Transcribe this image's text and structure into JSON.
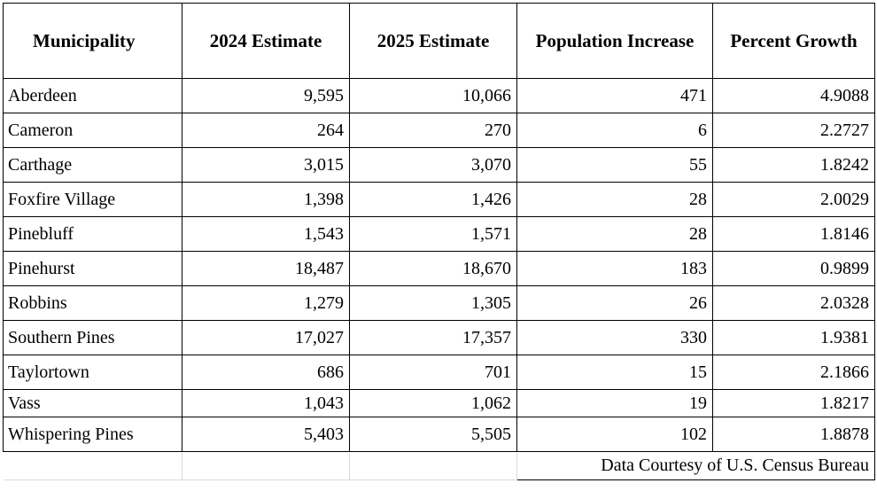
{
  "table": {
    "headers": [
      "Municipality",
      "2024 Estimate",
      "2025 Estimate",
      "Population Increase",
      "Percent Growth"
    ],
    "rows": [
      [
        "Aberdeen",
        "9,595",
        "10,066",
        "471",
        "4.9088"
      ],
      [
        "Cameron",
        "264",
        "270",
        "6",
        "2.2727"
      ],
      [
        "Carthage",
        "3,015",
        "3,070",
        "55",
        "1.8242"
      ],
      [
        "Foxfire Village",
        "1,398",
        "1,426",
        "28",
        "2.0029"
      ],
      [
        "Pinebluff",
        "1,543",
        "1,571",
        "28",
        "1.8146"
      ],
      [
        "Pinehurst",
        "18,487",
        "18,670",
        "183",
        "0.9899"
      ],
      [
        "Robbins",
        "1,279",
        "1,305",
        "26",
        "2.0328"
      ],
      [
        "Southern Pines",
        "17,027",
        "17,357",
        "330",
        "1.9381"
      ],
      [
        "Taylortown",
        "686",
        "701",
        "15",
        "2.1866"
      ],
      [
        "Vass",
        "1,043",
        "1,062",
        "19",
        "1.8217"
      ],
      [
        "Whispering Pines",
        "5,403",
        "5,505",
        "102",
        "1.8878"
      ]
    ],
    "credit": "Data Courtesy of U.S. Census Bureau"
  }
}
